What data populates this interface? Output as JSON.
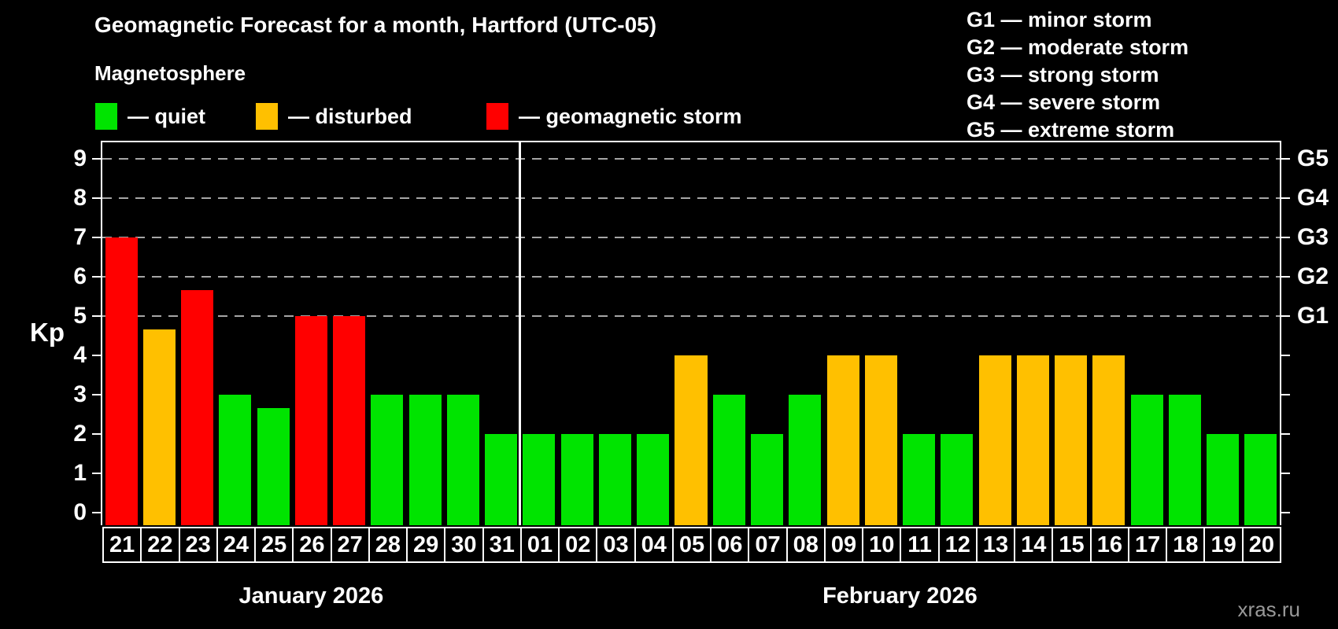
{
  "header": {
    "subtitle": "Magnetosphere"
  },
  "colors": {
    "quiet": "#00e400",
    "disturbed": "#ffc000",
    "storm": "#ff0000",
    "background": "#000000",
    "grid": "#a6a6a6",
    "axis": "#ffffff",
    "watermark": "#999999"
  },
  "legend": [
    {
      "id": "quiet",
      "label": "— quiet"
    },
    {
      "id": "disturbed",
      "label": "— disturbed"
    },
    {
      "id": "storm",
      "label": "— geomagnetic storm"
    }
  ],
  "g_scale_legend": [
    "G1 — minor storm",
    "G2 — moderate storm",
    "G3 — strong storm",
    "G4 — severe storm",
    "G5 — extreme storm"
  ],
  "footer": {
    "watermark": "xras.ru"
  },
  "chart_data": {
    "type": "bar",
    "title": "Geomagnetic Forecast for a month, Hartford (UTC-05)",
    "ylabel": "Kp",
    "xlabel": "",
    "ylim": [
      -0.32,
      9.42
    ],
    "grid": "dashed horizontal at Kp 5-9 only",
    "y_ticks": [
      0,
      1,
      2,
      3,
      4,
      5,
      6,
      7,
      8,
      9
    ],
    "grid_levels": [
      5,
      6,
      7,
      8,
      9
    ],
    "right_axis_labels": [
      {
        "kp": 5,
        "label": "G1"
      },
      {
        "kp": 6,
        "label": "G2"
      },
      {
        "kp": 7,
        "label": "G3"
      },
      {
        "kp": 8,
        "label": "G4"
      },
      {
        "kp": 9,
        "label": "G5"
      }
    ],
    "months": [
      {
        "label": "January 2026",
        "days": 11
      },
      {
        "label": "February 2026",
        "days": 20
      }
    ],
    "categories": [
      "21",
      "22",
      "23",
      "24",
      "25",
      "26",
      "27",
      "28",
      "29",
      "30",
      "31",
      "01",
      "02",
      "03",
      "04",
      "05",
      "06",
      "07",
      "08",
      "09",
      "10",
      "11",
      "12",
      "13",
      "14",
      "15",
      "16",
      "17",
      "18",
      "19",
      "20"
    ],
    "values": [
      7,
      4.67,
      5.67,
      3,
      2.67,
      5,
      5,
      3,
      3,
      3,
      2,
      2,
      2,
      2,
      2,
      4,
      3,
      2,
      3,
      4,
      4,
      2,
      2,
      4,
      4,
      4,
      4,
      3,
      3,
      2,
      2
    ],
    "statuses": [
      "storm",
      "disturbed",
      "storm",
      "quiet",
      "quiet",
      "storm",
      "storm",
      "quiet",
      "quiet",
      "quiet",
      "quiet",
      "quiet",
      "quiet",
      "quiet",
      "quiet",
      "disturbed",
      "quiet",
      "quiet",
      "quiet",
      "disturbed",
      "disturbed",
      "quiet",
      "quiet",
      "disturbed",
      "disturbed",
      "disturbed",
      "disturbed",
      "quiet",
      "quiet",
      "quiet",
      "quiet"
    ]
  }
}
